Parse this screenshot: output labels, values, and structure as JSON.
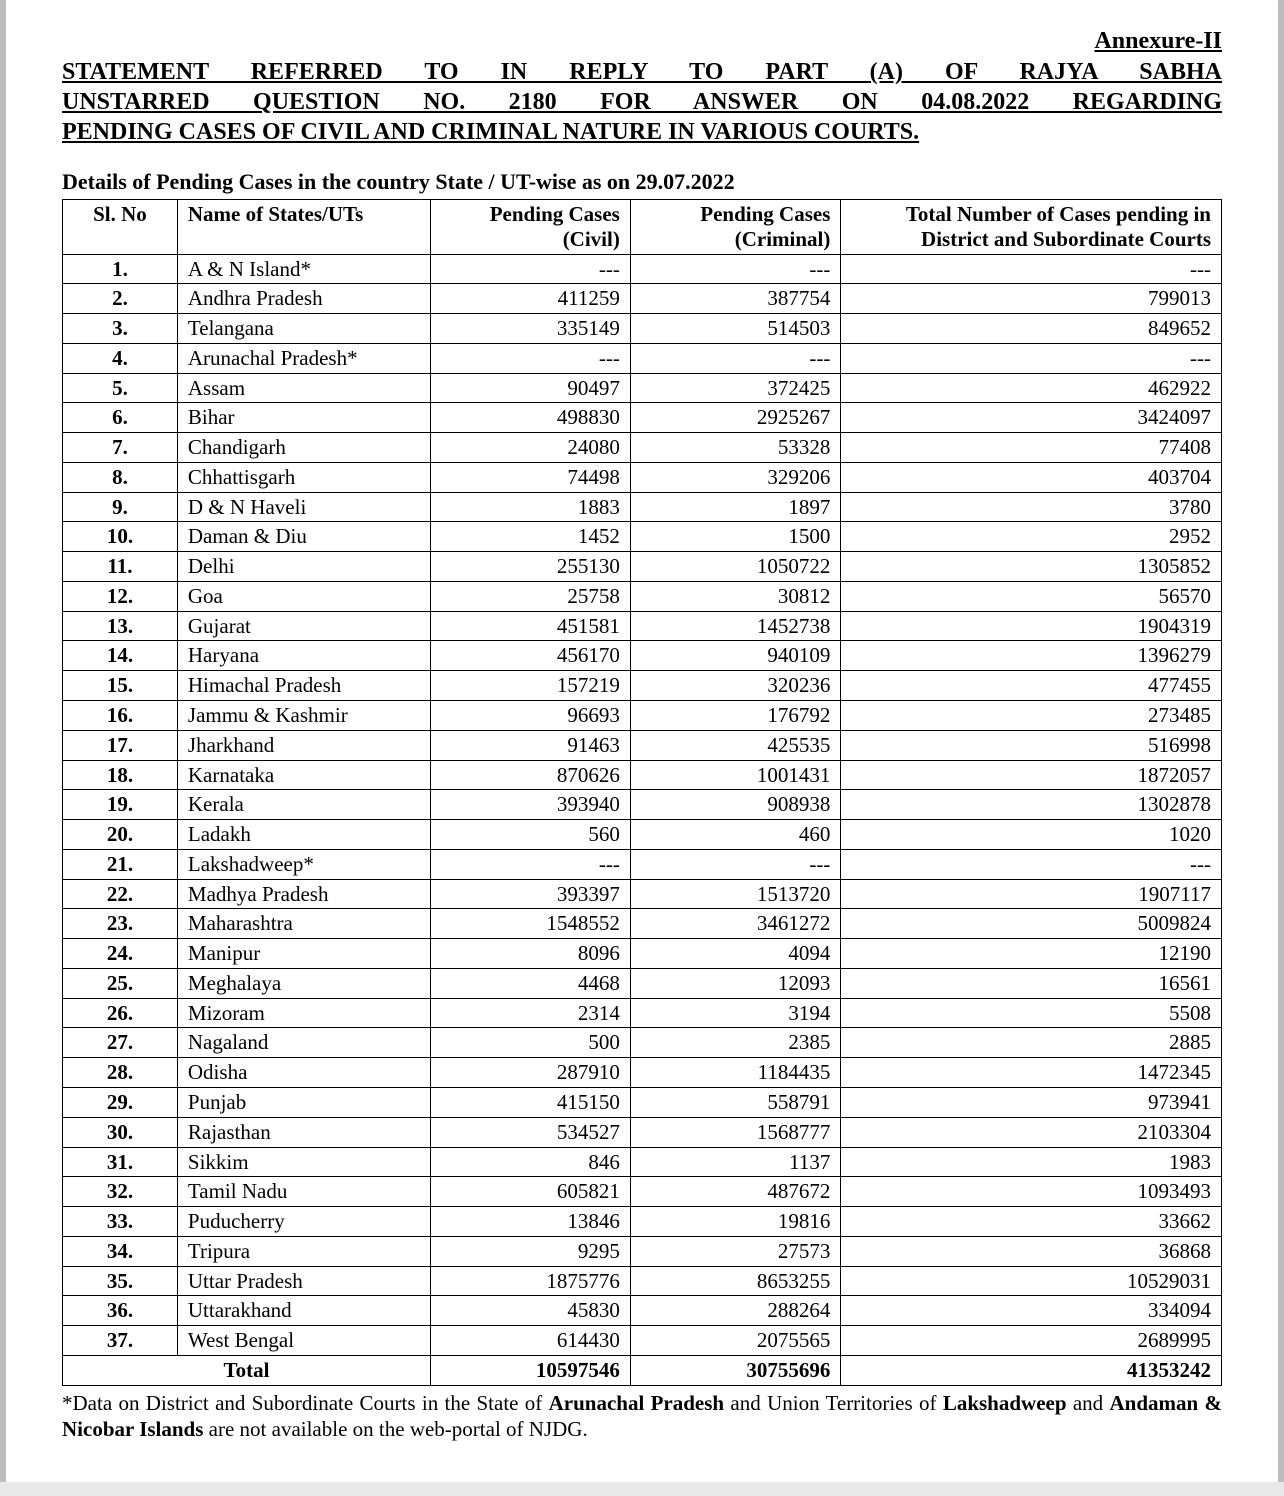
{
  "header": {
    "annexure": "Annexure-II",
    "statement_l1": "STATEMENT REFERRED TO IN REPLY TO  PART (A) OF RAJYA SABHA",
    "statement_l2": "UNSTARRED QUESTION NO. 2180 FOR ANSWER ON 04.08.2022 REGARDING",
    "statement_l3": "PENDING CASES OF CIVIL AND CRIMINAL NATURE IN VARIOUS COURTS.",
    "subhead": "Details of Pending Cases in the country State / UT-wise as on 29.07.2022"
  },
  "columns": {
    "c1": "Sl. No",
    "c2": "Name of States/UTs",
    "c3": "Pending Cases (Civil)",
    "c4": "Pending Cases (Criminal)",
    "c5": "Total Number of Cases pending in District and Subordinate Courts"
  },
  "rows": [
    {
      "n": "1.",
      "name": "A & N Island*",
      "civ": "---",
      "crim": "---",
      "tot": "---"
    },
    {
      "n": "2.",
      "name": "Andhra Pradesh",
      "civ": "411259",
      "crim": "387754",
      "tot": "799013"
    },
    {
      "n": "3.",
      "name": "Telangana",
      "civ": "335149",
      "crim": "514503",
      "tot": "849652"
    },
    {
      "n": "4.",
      "name": "Arunachal Pradesh*",
      "civ": "---",
      "crim": "---",
      "tot": "---"
    },
    {
      "n": "5.",
      "name": "Assam",
      "civ": "90497",
      "crim": "372425",
      "tot": "462922"
    },
    {
      "n": "6.",
      "name": "Bihar",
      "civ": "498830",
      "crim": "2925267",
      "tot": "3424097"
    },
    {
      "n": "7.",
      "name": "Chandigarh",
      "civ": "24080",
      "crim": "53328",
      "tot": "77408"
    },
    {
      "n": "8.",
      "name": "Chhattisgarh",
      "civ": "74498",
      "crim": "329206",
      "tot": "403704"
    },
    {
      "n": "9.",
      "name": "D & N Haveli",
      "civ": "1883",
      "crim": "1897",
      "tot": "3780"
    },
    {
      "n": "10.",
      "name": "Daman & Diu",
      "civ": "1452",
      "crim": "1500",
      "tot": "2952"
    },
    {
      "n": "11.",
      "name": "Delhi",
      "civ": "255130",
      "crim": "1050722",
      "tot": "1305852"
    },
    {
      "n": "12.",
      "name": "Goa",
      "civ": "25758",
      "crim": "30812",
      "tot": "56570"
    },
    {
      "n": "13.",
      "name": "Gujarat",
      "civ": "451581",
      "crim": "1452738",
      "tot": "1904319"
    },
    {
      "n": "14.",
      "name": "Haryana",
      "civ": "456170",
      "crim": "940109",
      "tot": "1396279"
    },
    {
      "n": "15.",
      "name": "Himachal Pradesh",
      "civ": "157219",
      "crim": "320236",
      "tot": "477455"
    },
    {
      "n": "16.",
      "name": "Jammu & Kashmir",
      "civ": "96693",
      "crim": "176792",
      "tot": "273485"
    },
    {
      "n": "17.",
      "name": "Jharkhand",
      "civ": "91463",
      "crim": "425535",
      "tot": "516998"
    },
    {
      "n": "18.",
      "name": "Karnataka",
      "civ": "870626",
      "crim": "1001431",
      "tot": "1872057"
    },
    {
      "n": "19.",
      "name": "Kerala",
      "civ": "393940",
      "crim": "908938",
      "tot": "1302878"
    },
    {
      "n": "20.",
      "name": "Ladakh",
      "civ": "560",
      "crim": "460",
      "tot": "1020"
    },
    {
      "n": "21.",
      "name": "Lakshadweep*",
      "civ": "---",
      "crim": "---",
      "tot": "---"
    },
    {
      "n": "22.",
      "name": "Madhya Pradesh",
      "civ": "393397",
      "crim": "1513720",
      "tot": "1907117"
    },
    {
      "n": "23.",
      "name": "Maharashtra",
      "civ": "1548552",
      "crim": "3461272",
      "tot": "5009824"
    },
    {
      "n": "24.",
      "name": "Manipur",
      "civ": "8096",
      "crim": "4094",
      "tot": "12190"
    },
    {
      "n": "25.",
      "name": "Meghalaya",
      "civ": "4468",
      "crim": "12093",
      "tot": "16561"
    },
    {
      "n": "26.",
      "name": "Mizoram",
      "civ": "2314",
      "crim": "3194",
      "tot": "5508"
    },
    {
      "n": "27.",
      "name": "Nagaland",
      "civ": "500",
      "crim": "2385",
      "tot": "2885"
    },
    {
      "n": "28.",
      "name": "Odisha",
      "civ": "287910",
      "crim": "1184435",
      "tot": "1472345"
    },
    {
      "n": "29.",
      "name": "Punjab",
      "civ": "415150",
      "crim": "558791",
      "tot": "973941"
    },
    {
      "n": "30.",
      "name": "Rajasthan",
      "civ": "534527",
      "crim": "1568777",
      "tot": "2103304"
    },
    {
      "n": "31.",
      "name": "Sikkim",
      "civ": "846",
      "crim": "1137",
      "tot": "1983"
    },
    {
      "n": "32.",
      "name": "Tamil Nadu",
      "civ": "605821",
      "crim": "487672",
      "tot": "1093493"
    },
    {
      "n": "33.",
      "name": "Puducherry",
      "civ": "13846",
      "crim": "19816",
      "tot": "33662"
    },
    {
      "n": "34.",
      "name": "Tripura",
      "civ": "9295",
      "crim": "27573",
      "tot": "36868"
    },
    {
      "n": "35.",
      "name": "Uttar Pradesh",
      "civ": "1875776",
      "crim": "8653255",
      "tot": "10529031"
    },
    {
      "n": "36.",
      "name": "Uttarakhand",
      "civ": "45830",
      "crim": "288264",
      "tot": "334094"
    },
    {
      "n": "37.",
      "name": "West Bengal",
      "civ": "614430",
      "crim": "2075565",
      "tot": "2689995"
    }
  ],
  "total": {
    "label": "Total",
    "civ": "10597546",
    "crim": "30755696",
    "tot": "41353242"
  },
  "footnote": {
    "p1": "*Data on District and Subordinate Courts in the State of ",
    "b1": "Arunachal Pradesh",
    "p2": " and Union Territories of ",
    "b2": "Lakshadweep",
    "p3": "  and ",
    "b3": "Andaman & Nicobar Islands",
    "p4": " are not available on the web-portal of NJDG."
  }
}
